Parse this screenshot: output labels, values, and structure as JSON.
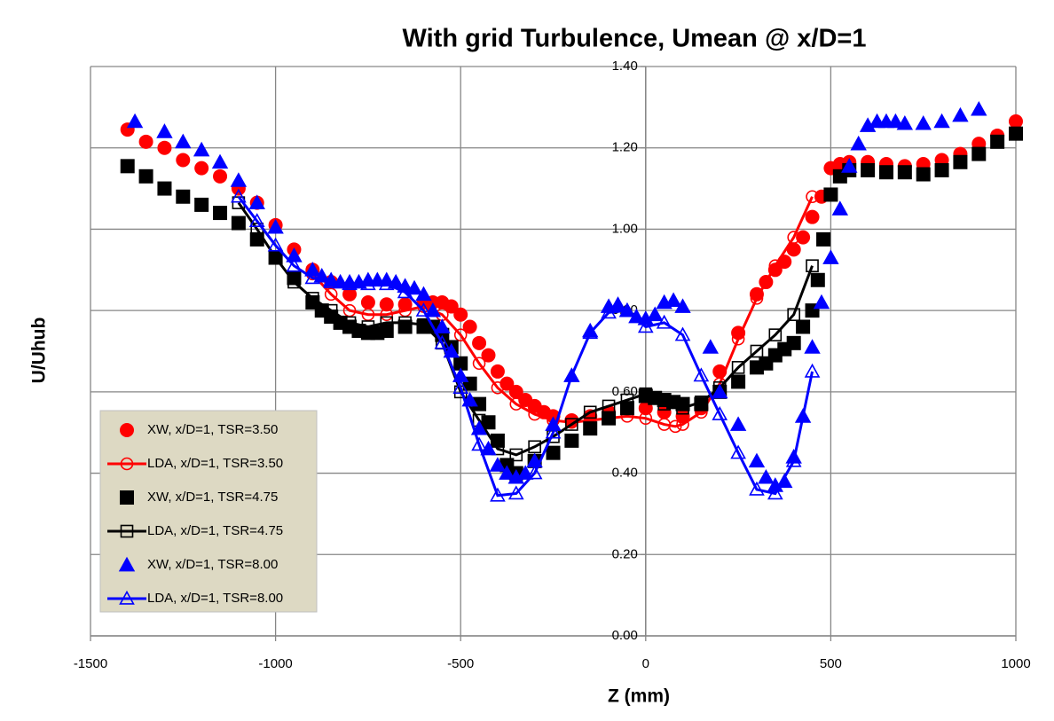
{
  "chart_data": {
    "type": "scatter",
    "title": "With grid Turbulence, Umean @ x/D=1",
    "x_label": "Z (mm)",
    "y_label": "U/Uhub",
    "xlim": [
      -1500,
      1000
    ],
    "xticks": [
      -1500,
      -1000,
      -500,
      0,
      500,
      1000
    ],
    "ylim": [
      0,
      1.4
    ],
    "yticks": [
      {
        "value": 0,
        "label": "0.00"
      },
      {
        "value": 0.2,
        "label": "0.20"
      },
      {
        "value": 0.4,
        "label": "0.40"
      },
      {
        "value": 0.6,
        "label": "0.60"
      },
      {
        "value": 0.8,
        "label": "0.80"
      },
      {
        "value": 1.0,
        "label": "1.00"
      },
      {
        "value": 1.2,
        "label": "1.20"
      },
      {
        "value": 1.4,
        "label": "1.40"
      }
    ],
    "grid": true,
    "legend": "lower left",
    "series": [
      {
        "name": "XW, x/D=1, TSR=3.50",
        "color": "#ff0000",
        "marker": "circle",
        "filled": true,
        "line": false,
        "x": [
          -1400,
          -1350,
          -1300,
          -1250,
          -1200,
          -1150,
          -1100,
          -1050,
          -1000,
          -950,
          -900,
          -850,
          -800,
          -750,
          -700,
          -650,
          -600,
          -575,
          -550,
          -525,
          -500,
          -475,
          -450,
          -425,
          -400,
          -375,
          -350,
          -325,
          -300,
          -275,
          -250,
          -200,
          -150,
          -100,
          -50,
          0,
          50,
          100,
          150,
          200,
          250,
          300,
          325,
          350,
          375,
          400,
          425,
          450,
          475,
          500,
          525,
          550,
          600,
          650,
          700,
          750,
          800,
          850,
          900,
          950,
          1000
        ],
        "values": [
          1.245,
          1.215,
          1.2,
          1.17,
          1.15,
          1.13,
          1.1,
          1.065,
          1.01,
          0.95,
          0.9,
          0.87,
          0.84,
          0.82,
          0.815,
          0.815,
          0.82,
          0.82,
          0.82,
          0.81,
          0.79,
          0.76,
          0.72,
          0.69,
          0.65,
          0.62,
          0.6,
          0.58,
          0.565,
          0.55,
          0.54,
          0.53,
          0.54,
          0.55,
          0.56,
          0.56,
          0.55,
          0.54,
          0.56,
          0.65,
          0.745,
          0.84,
          0.87,
          0.9,
          0.92,
          0.95,
          0.98,
          1.03,
          1.08,
          1.15,
          1.16,
          1.165,
          1.165,
          1.16,
          1.155,
          1.16,
          1.17,
          1.185,
          1.21,
          1.23,
          1.265
        ]
      },
      {
        "name": "LDA, x/D=1, TSR=3.50",
        "color": "#ff0000",
        "marker": "circle",
        "filled": false,
        "line": true,
        "x": [
          -900,
          -850,
          -800,
          -750,
          -700,
          -650,
          -600,
          -550,
          -500,
          -450,
          -400,
          -350,
          -300,
          -250,
          -200,
          -150,
          -100,
          -50,
          0,
          50,
          80,
          100,
          150,
          200,
          250,
          300,
          350,
          400,
          450
        ],
        "values": [
          0.89,
          0.84,
          0.8,
          0.79,
          0.79,
          0.8,
          0.81,
          0.79,
          0.74,
          0.67,
          0.61,
          0.57,
          0.545,
          0.53,
          0.525,
          0.53,
          0.535,
          0.54,
          0.535,
          0.52,
          0.515,
          0.52,
          0.55,
          0.62,
          0.73,
          0.83,
          0.91,
          0.98,
          1.08
        ]
      },
      {
        "name": "XW, x/D=1, TSR=4.75",
        "color": "#000000",
        "marker": "square",
        "filled": true,
        "line": false,
        "x": [
          -1400,
          -1350,
          -1300,
          -1250,
          -1200,
          -1150,
          -1100,
          -1050,
          -1000,
          -950,
          -900,
          -875,
          -850,
          -825,
          -800,
          -775,
          -750,
          -725,
          -700,
          -650,
          -600,
          -575,
          -550,
          -525,
          -500,
          -475,
          -450,
          -425,
          -400,
          -375,
          -350,
          -300,
          -250,
          -200,
          -150,
          -100,
          -50,
          0,
          25,
          50,
          75,
          100,
          150,
          200,
          250,
          300,
          325,
          350,
          375,
          400,
          425,
          450,
          465,
          480,
          500,
          525,
          550,
          600,
          650,
          700,
          750,
          800,
          850,
          900,
          950,
          1000
        ],
        "values": [
          1.155,
          1.13,
          1.1,
          1.08,
          1.06,
          1.04,
          1.015,
          0.975,
          0.93,
          0.88,
          0.82,
          0.8,
          0.785,
          0.77,
          0.76,
          0.75,
          0.745,
          0.745,
          0.75,
          0.76,
          0.76,
          0.76,
          0.74,
          0.71,
          0.67,
          0.62,
          0.57,
          0.525,
          0.48,
          0.42,
          0.4,
          0.43,
          0.45,
          0.48,
          0.51,
          0.535,
          0.56,
          0.59,
          0.585,
          0.58,
          0.575,
          0.57,
          0.57,
          0.6,
          0.625,
          0.66,
          0.67,
          0.69,
          0.705,
          0.72,
          0.76,
          0.8,
          0.875,
          0.975,
          1.085,
          1.13,
          1.145,
          1.145,
          1.14,
          1.14,
          1.135,
          1.145,
          1.165,
          1.185,
          1.215,
          1.235
        ]
      },
      {
        "name": "LDA, x/D=1, TSR=4.75",
        "color": "#000000",
        "marker": "square",
        "filled": false,
        "line": true,
        "x": [
          -1100,
          -1050,
          -1000,
          -950,
          -900,
          -850,
          -800,
          -750,
          -700,
          -650,
          -600,
          -550,
          -500,
          -450,
          -400,
          -350,
          -300,
          -250,
          -200,
          -150,
          -100,
          -50,
          0,
          50,
          100,
          150,
          200,
          250,
          300,
          350,
          400,
          450
        ],
        "values": [
          1.065,
          1.0,
          0.93,
          0.87,
          0.83,
          0.8,
          0.77,
          0.76,
          0.77,
          0.77,
          0.765,
          0.72,
          0.6,
          0.53,
          0.46,
          0.445,
          0.465,
          0.49,
          0.52,
          0.55,
          0.565,
          0.58,
          0.595,
          0.57,
          0.56,
          0.575,
          0.61,
          0.66,
          0.7,
          0.74,
          0.79,
          0.91
        ]
      },
      {
        "name": "XW, x/D=1, TSR=8.00",
        "color": "#0000ff",
        "marker": "triangle",
        "filled": true,
        "line": false,
        "x": [
          -1380,
          -1300,
          -1250,
          -1200,
          -1150,
          -1100,
          -1050,
          -1000,
          -950,
          -900,
          -875,
          -850,
          -825,
          -800,
          -775,
          -750,
          -725,
          -700,
          -675,
          -650,
          -625,
          -600,
          -575,
          -550,
          -525,
          -500,
          -475,
          -450,
          -425,
          -400,
          -375,
          -350,
          -325,
          -300,
          -250,
          -200,
          -150,
          -100,
          -75,
          -50,
          -25,
          0,
          25,
          50,
          75,
          100,
          175,
          200,
          250,
          300,
          325,
          350,
          375,
          400,
          425,
          450,
          475,
          500,
          525,
          550,
          575,
          600,
          625,
          650,
          675,
          700,
          750,
          800,
          850,
          900
        ],
        "values": [
          1.265,
          1.24,
          1.215,
          1.195,
          1.165,
          1.12,
          1.065,
          1.005,
          0.935,
          0.9,
          0.885,
          0.875,
          0.87,
          0.87,
          0.87,
          0.875,
          0.875,
          0.875,
          0.87,
          0.86,
          0.855,
          0.84,
          0.8,
          0.76,
          0.7,
          0.64,
          0.58,
          0.51,
          0.46,
          0.42,
          0.4,
          0.39,
          0.4,
          0.43,
          0.52,
          0.64,
          0.75,
          0.81,
          0.815,
          0.8,
          0.785,
          0.78,
          0.79,
          0.82,
          0.825,
          0.81,
          0.71,
          0.6,
          0.52,
          0.43,
          0.39,
          0.37,
          0.38,
          0.44,
          0.54,
          0.71,
          0.82,
          0.93,
          1.05,
          1.155,
          1.21,
          1.255,
          1.265,
          1.265,
          1.265,
          1.26,
          1.26,
          1.265,
          1.28,
          1.295
        ]
      },
      {
        "name": "LDA, x/D=1, TSR=8.00",
        "color": "#0000ff",
        "marker": "triangle",
        "filled": false,
        "line": true,
        "x": [
          -1100,
          -1050,
          -1000,
          -950,
          -900,
          -850,
          -800,
          -750,
          -700,
          -650,
          -600,
          -550,
          -500,
          -450,
          -400,
          -350,
          -300,
          -250,
          -200,
          -150,
          -100,
          -50,
          0,
          50,
          100,
          150,
          200,
          250,
          300,
          350,
          400,
          450
        ],
        "values": [
          1.08,
          1.02,
          0.96,
          0.91,
          0.88,
          0.87,
          0.865,
          0.865,
          0.865,
          0.845,
          0.8,
          0.72,
          0.61,
          0.47,
          0.345,
          0.35,
          0.4,
          0.5,
          0.64,
          0.745,
          0.795,
          0.8,
          0.76,
          0.77,
          0.74,
          0.64,
          0.545,
          0.45,
          0.36,
          0.35,
          0.43,
          0.65
        ]
      }
    ]
  }
}
